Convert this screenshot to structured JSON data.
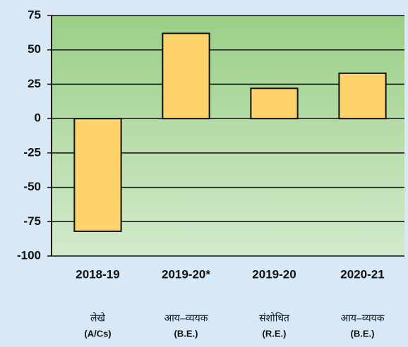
{
  "chart_data": {
    "type": "bar",
    "categories": [
      "2018-19",
      "2019-20*",
      "2019-20",
      "2020-21"
    ],
    "sublabels": [
      [
        "लेखे",
        "(A/Cs)"
      ],
      [
        "आय–व्ययक",
        "(B.E.)"
      ],
      [
        "संशोधित",
        "(R.E.)"
      ],
      [
        "आय–व्ययक",
        "(B.E.)"
      ]
    ],
    "values": [
      -82,
      62,
      22,
      33
    ],
    "color": "#ffd36b",
    "ylim": [
      -100,
      75
    ],
    "yticks": [
      -100,
      -75,
      -50,
      -25,
      0,
      25,
      50,
      75
    ],
    "grid": true
  }
}
